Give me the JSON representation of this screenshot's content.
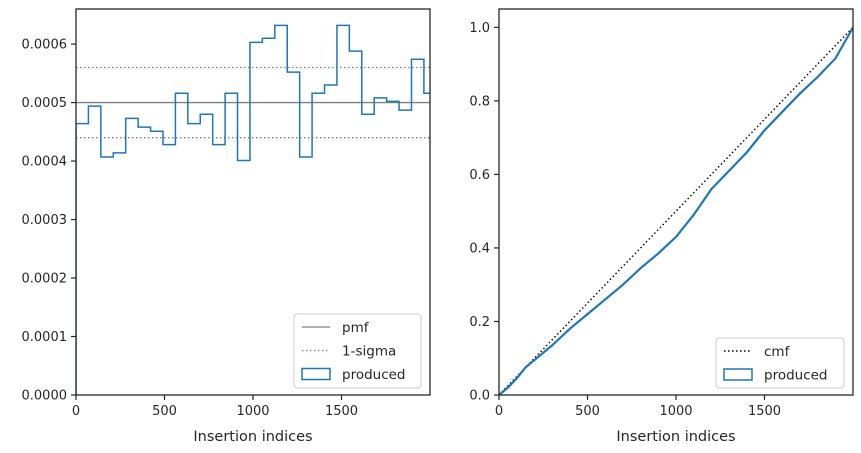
{
  "colors": {
    "produced": "#1f77b4",
    "pmf": "#808080",
    "sigma": "#808080",
    "cmf": "#000000",
    "axes": "#262626"
  },
  "chart_data": [
    {
      "type": "line",
      "style": "histogram-step",
      "xlabel": "Insertion indices",
      "ylabel": "",
      "xlim": [
        0,
        2000
      ],
      "ylim": [
        0,
        0.00066
      ],
      "x_ticks": [
        0,
        500,
        1000,
        1500
      ],
      "x_tick_labels": [
        "0",
        "500",
        "1000",
        "1500"
      ],
      "y_ticks": [
        0,
        0.0001,
        0.0002,
        0.0003,
        0.0004,
        0.0005,
        0.0006
      ],
      "y_tick_labels": [
        "0.0000",
        "0.0001",
        "0.0002",
        "0.0003",
        "0.0004",
        "0.0005",
        "0.0006"
      ],
      "legend_position": "lower right",
      "grid": false,
      "reference_lines": {
        "pmf": {
          "label": "pmf",
          "y": 0.0005,
          "linestyle": "solid"
        },
        "sigma": {
          "label": "1-sigma",
          "y": [
            0.00044,
            0.00056
          ],
          "linestyle": "dotted"
        }
      },
      "series": [
        {
          "name": "produced",
          "bin_width": 70.2,
          "values": [
            0.000464,
            0.000494,
            0.000407,
            0.000414,
            0.000473,
            0.000458,
            0.000451,
            0.000428,
            0.000516,
            0.000464,
            0.00048,
            0.000428,
            0.000516,
            0.000401,
            0.000603,
            0.00061,
            0.000632,
            0.000552,
            0.000407,
            0.000516,
            0.00053,
            0.000632,
            0.000588,
            0.00048,
            0.000508,
            0.000502,
            0.000487,
            0.000574,
            0.000516
          ]
        }
      ],
      "legend": [
        "pmf",
        "1-sigma",
        "produced"
      ]
    },
    {
      "type": "line",
      "xlabel": "Insertion indices",
      "ylabel": "",
      "xlim": [
        0,
        2000
      ],
      "ylim": [
        0,
        1.05
      ],
      "x_ticks": [
        0,
        500,
        1000,
        1500
      ],
      "x_tick_labels": [
        "0",
        "500",
        "1000",
        "1500"
      ],
      "y_ticks": [
        0,
        0.2,
        0.4,
        0.6,
        0.8,
        1.0
      ],
      "y_tick_labels": [
        "0.0",
        "0.2",
        "0.4",
        "0.6",
        "0.8",
        "1.0"
      ],
      "legend_position": "lower right",
      "grid": false,
      "series": [
        {
          "name": "cmf",
          "linestyle": "dotted",
          "x": [
            0,
            2000
          ],
          "y": [
            0,
            1.0
          ]
        },
        {
          "name": "produced",
          "x": [
            0,
            50,
            100,
            150,
            200,
            300,
            400,
            500,
            600,
            700,
            800,
            900,
            1000,
            1100,
            1200,
            1300,
            1400,
            1500,
            1600,
            1700,
            1800,
            1900,
            2000
          ],
          "y": [
            0,
            0.02,
            0.045,
            0.075,
            0.095,
            0.135,
            0.18,
            0.22,
            0.26,
            0.3,
            0.345,
            0.385,
            0.43,
            0.49,
            0.56,
            0.61,
            0.66,
            0.72,
            0.77,
            0.82,
            0.865,
            0.915,
            1.0
          ]
        }
      ],
      "legend": [
        "cmf",
        "produced"
      ]
    }
  ]
}
